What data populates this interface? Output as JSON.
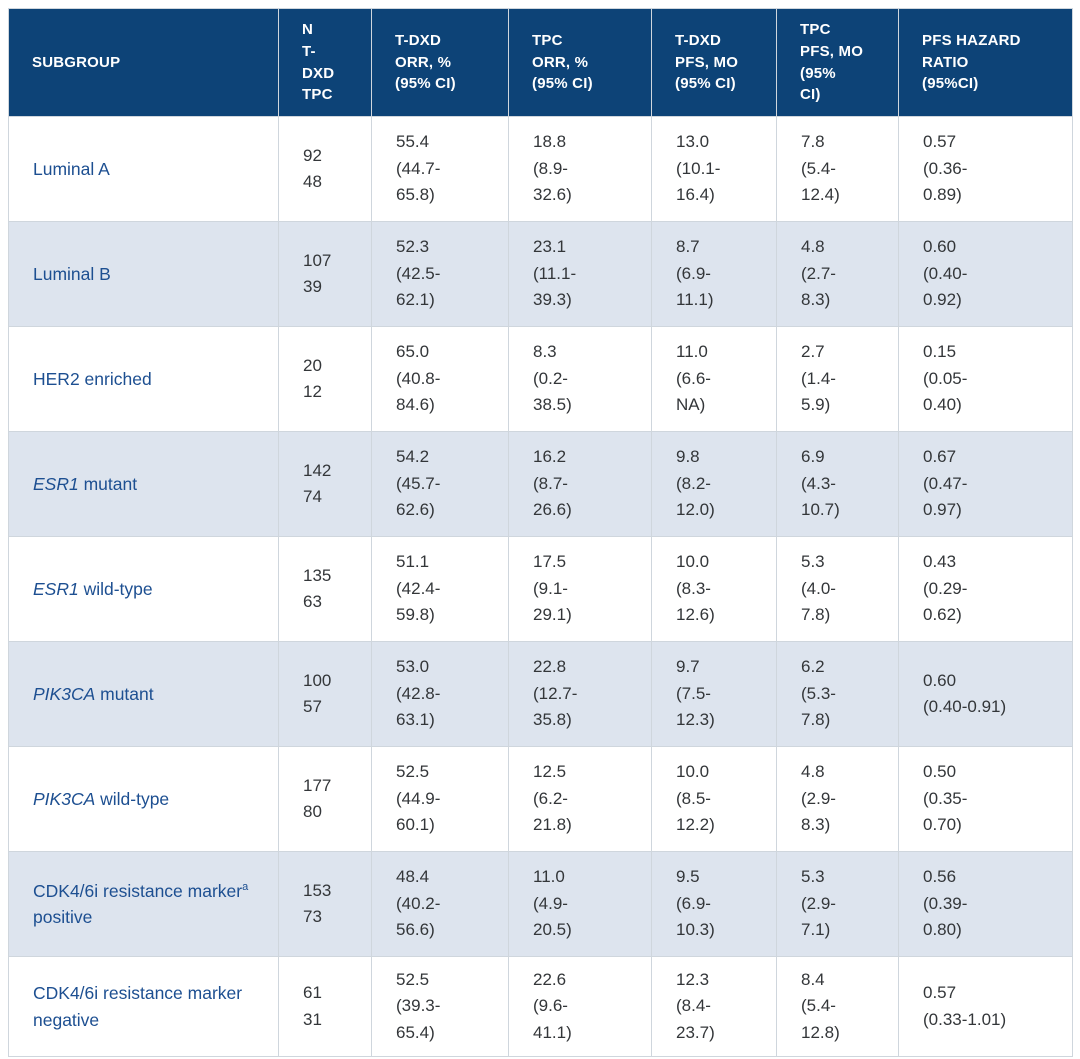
{
  "colors": {
    "header_bg": "#0d4377",
    "header_text": "#ffffff",
    "row_bg": "#ffffff",
    "row_alt_bg": "#dde4ee",
    "subgroup_text": "#1d4f91",
    "body_text": "#333639",
    "border": "#cfd6dd"
  },
  "chart_data": {
    "type": "table",
    "columns": [
      {
        "id": "subgroup",
        "label": "SUBGROUP"
      },
      {
        "id": "n",
        "label": "N\nT-\nDXD\nTPC"
      },
      {
        "id": "tdxd_orr",
        "label": "T-DXD\nORR, %\n(95% CI)"
      },
      {
        "id": "tpc_orr",
        "label": "TPC\nORR, %\n(95% CI)"
      },
      {
        "id": "tdxd_pfs",
        "label": "T-DXD\nPFS, MO\n(95% CI)"
      },
      {
        "id": "tpc_pfs",
        "label": "TPC\nPFS, MO\n(95%\nCI)"
      },
      {
        "id": "hr",
        "label": "PFS HAZARD\nRATIO\n(95%CI)"
      }
    ],
    "rows": [
      {
        "subgroup": [
          {
            "text": "Luminal A"
          }
        ],
        "n": "92\n48",
        "tdxd_orr": "55.4\n(44.7-\n65.8)",
        "tpc_orr": "18.8\n(8.9-\n32.6)",
        "tdxd_pfs": "13.0\n(10.1-\n16.4)",
        "tpc_pfs": "7.8\n(5.4-\n12.4)",
        "hr": "0.57\n(0.36-\n0.89)"
      },
      {
        "subgroup": [
          {
            "text": "Luminal B"
          }
        ],
        "n": "107\n39",
        "tdxd_orr": "52.3\n(42.5-\n62.1)",
        "tpc_orr": "23.1\n(11.1-\n39.3)",
        "tdxd_pfs": "8.7\n(6.9-\n11.1)",
        "tpc_pfs": "4.8\n(2.7-\n8.3)",
        "hr": "0.60\n(0.40-\n0.92)"
      },
      {
        "subgroup": [
          {
            "text": "HER2 enriched"
          }
        ],
        "n": "20\n12",
        "tdxd_orr": "65.0\n(40.8-\n84.6)",
        "tpc_orr": "8.3\n(0.2-\n38.5)",
        "tdxd_pfs": "11.0\n(6.6-\nNA)",
        "tpc_pfs": "2.7\n(1.4-\n5.9)",
        "hr": "0.15\n(0.05-\n0.40)"
      },
      {
        "subgroup": [
          {
            "text": "ESR1",
            "italic": true
          },
          {
            "text": " mutant"
          }
        ],
        "n": "142\n74",
        "tdxd_orr": "54.2\n(45.7-\n62.6)",
        "tpc_orr": "16.2\n(8.7-\n26.6)",
        "tdxd_pfs": "9.8\n(8.2-\n12.0)",
        "tpc_pfs": "6.9\n(4.3-\n10.7)",
        "hr": "0.67\n(0.47-\n0.97)"
      },
      {
        "subgroup": [
          {
            "text": "ESR1",
            "italic": true
          },
          {
            "text": " wild-type"
          }
        ],
        "n": "135\n63",
        "tdxd_orr": "51.1\n(42.4-\n59.8)",
        "tpc_orr": "17.5\n(9.1-\n29.1)",
        "tdxd_pfs": "10.0\n(8.3-\n12.6)",
        "tpc_pfs": "5.3\n(4.0-\n7.8)",
        "hr": "0.43\n(0.29-\n0.62)"
      },
      {
        "subgroup": [
          {
            "text": "PIK3CA",
            "italic": true
          },
          {
            "text": " mutant"
          }
        ],
        "n": "100\n57",
        "tdxd_orr": "53.0\n(42.8-\n63.1)",
        "tpc_orr": "22.8\n(12.7-\n35.8)",
        "tdxd_pfs": "9.7\n(7.5-\n12.3)",
        "tpc_pfs": "6.2\n(5.3-\n7.8)",
        "hr": "0.60\n(0.40-0.91)"
      },
      {
        "subgroup": [
          {
            "text": "PIK3CA",
            "italic": true
          },
          {
            "text": " wild-type"
          }
        ],
        "n": "177\n80",
        "tdxd_orr": "52.5\n(44.9-\n60.1)",
        "tpc_orr": "12.5\n(6.2-\n21.8)",
        "tdxd_pfs": "10.0\n(8.5-\n12.2)",
        "tpc_pfs": "4.8\n(2.9-\n8.3)",
        "hr": "0.50\n(0.35-\n0.70)"
      },
      {
        "subgroup": [
          {
            "text": "CDK4/6i resistance marker"
          },
          {
            "text": "a",
            "sup": true
          },
          {
            "text": " positive"
          }
        ],
        "n": "153\n73",
        "tdxd_orr": "48.4\n(40.2-\n56.6)",
        "tpc_orr": "11.0\n(4.9-\n20.5)",
        "tdxd_pfs": "9.5\n(6.9-\n10.3)",
        "tpc_pfs": "5.3\n(2.9-\n7.1)",
        "hr": "0.56\n(0.39-\n0.80)"
      },
      {
        "subgroup": [
          {
            "text": "CDK4/6i resistance marker negative"
          }
        ],
        "n": "61\n31",
        "tdxd_orr": "52.5\n(39.3-\n65.4)",
        "tpc_orr": "22.6\n(9.6-\n41.1)",
        "tdxd_pfs": "12.3\n(8.4-\n23.7)",
        "tpc_pfs": "8.4\n(5.4-\n12.8)",
        "hr": "0.57\n(0.33-1.01)"
      }
    ]
  }
}
